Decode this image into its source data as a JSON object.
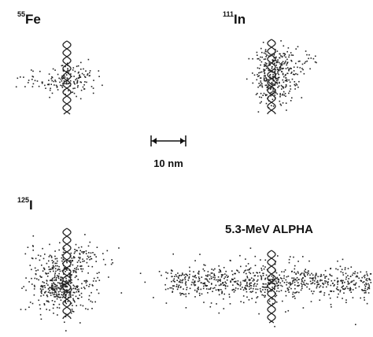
{
  "panels": [
    {
      "mass": "55",
      "element": "Fe"
    },
    {
      "mass": "111",
      "element": "In"
    },
    {
      "mass": "125",
      "element": "I"
    },
    {
      "label": "5.3-MeV ALPHA"
    }
  ],
  "scale_bar": {
    "label": "10 nm"
  }
}
